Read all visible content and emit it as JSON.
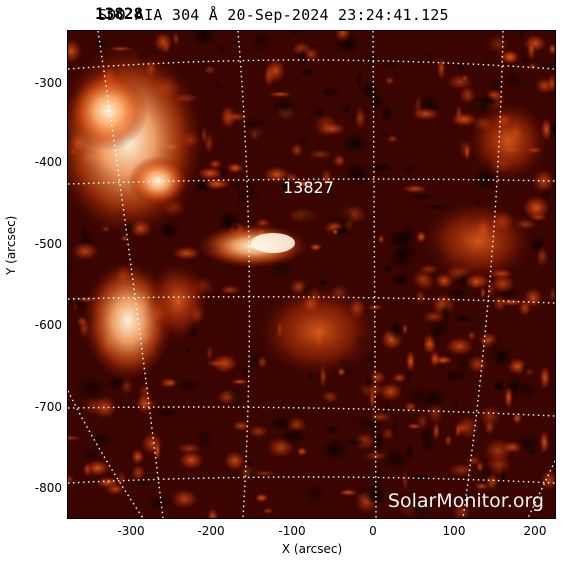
{
  "header": {
    "title": "SDO AIA 304 Å 20-Sep-2024 23:24:41.125",
    "region_overlap": "13828"
  },
  "image": {
    "region_label": "13827",
    "watermark": "SolarMonitor.org"
  },
  "axes": {
    "x_title": "X (arcsec)",
    "y_title": "Y (arcsec)",
    "x_ticks": [
      "-300",
      "-200",
      "-100",
      "0",
      "100",
      "200"
    ],
    "y_ticks": [
      "-300",
      "-400",
      "-500",
      "-600",
      "-700",
      "-800"
    ]
  },
  "colors": {
    "background": "#3a0500",
    "bright": "#ffe6c8",
    "mid": "#d24a10",
    "grid": "#ffffff"
  }
}
